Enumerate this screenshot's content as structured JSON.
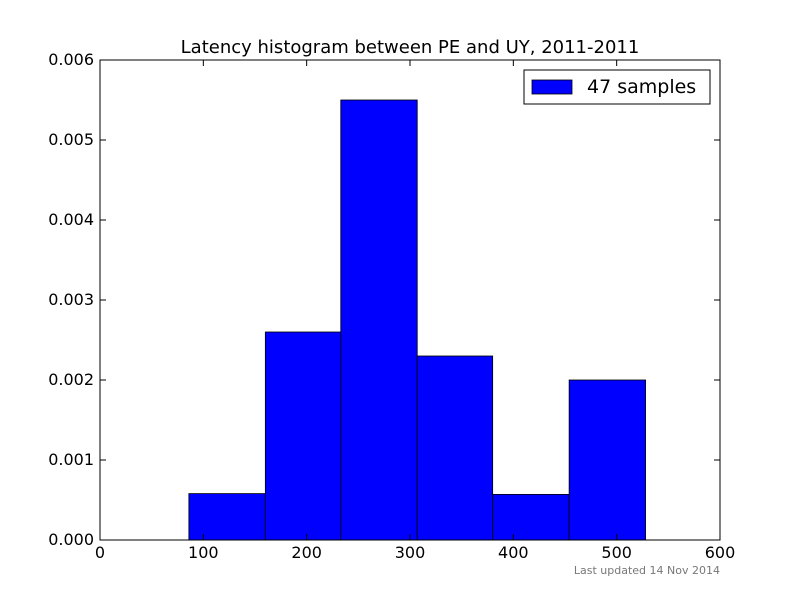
{
  "chart_data": {
    "type": "histogram",
    "title": "Latency histogram between PE and UY, 2011-2011",
    "bins": [
      86,
      160,
      233,
      307,
      380,
      454,
      528
    ],
    "series": [
      {
        "name": "47 samples",
        "color": "#0000ff",
        "values": [
          0.00058,
          0.0026,
          0.0055,
          0.0023,
          0.00057,
          0.002
        ]
      }
    ],
    "xlim": [
      0,
      600
    ],
    "xticks": [
      0,
      100,
      200,
      300,
      400,
      500,
      600
    ],
    "ylim": [
      0,
      0.006
    ],
    "yticks": [
      {
        "value": 0,
        "label": "0.000"
      },
      {
        "value": 0.001,
        "label": "0.001"
      },
      {
        "value": 0.002,
        "label": "0.002"
      },
      {
        "value": 0.003,
        "label": "0.003"
      },
      {
        "value": 0.004,
        "label": "0.004"
      },
      {
        "value": 0.005,
        "label": "0.005"
      },
      {
        "value": 0.006,
        "label": "0.006"
      }
    ],
    "legend": "upper right",
    "footnote": "Last updated 14 Nov 2014"
  }
}
